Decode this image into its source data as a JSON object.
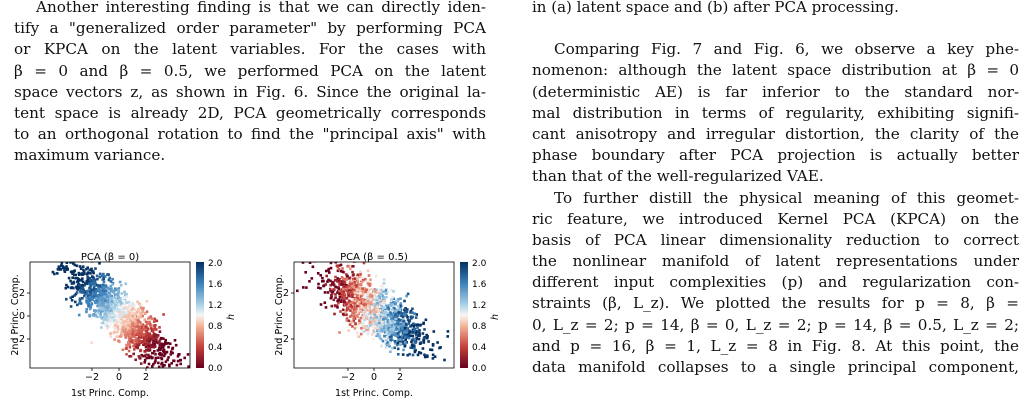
{
  "left_column": {
    "lines": [
      "Another interesting finding is that we can directly iden-",
      "tify a \"generalized order parameter\" by performing PCA",
      "or KPCA on the latent variables.  For the cases with",
      "β = 0 and β = 0.5, we performed PCA on the latent",
      "space vectors z, as shown in Fig. 6. Since the original la-",
      "tent space is already 2D, PCA geometrically corresponds",
      "to an orthogonal rotation to find the \"principal axis\" with",
      "maximum variance."
    ]
  },
  "figure": {
    "panels": [
      {
        "title": "PCA (β = 0)",
        "xlabel": "1st Princ. Comp.",
        "ylabel": "2nd Princ. Comp."
      },
      {
        "title": "PCA (β = 0.5)",
        "xlabel": "1st Princ. Comp.",
        "ylabel": "2nd Princ. Comp."
      }
    ],
    "x_ticks": [
      "−2",
      "0",
      "2"
    ],
    "y_ticks": [
      "2",
      "0",
      "−2"
    ],
    "colorbar_ticks": [
      "2.0",
      "1.6",
      "1.2",
      "0.8",
      "0.4",
      "0.0"
    ],
    "colorbar_label": "h",
    "colors": {
      "high": "#1f4f91",
      "mid": "#f2f2f2",
      "low": "#a3161f"
    }
  },
  "right_column": {
    "caption_tail": "in (a) latent space and (b) after PCA processing.",
    "para1": [
      "Comparing Fig. 7 and Fig. 6, we observe a key phe-",
      "nomenon: although the latent space distribution at β = 0",
      "(deterministic AE) is far inferior to the standard nor-",
      "mal distribution in terms of regularity, exhibiting signifi-",
      "cant anisotropy and irregular distortion, the clarity of the",
      "phase boundary after PCA projection is actually better",
      "than that of the well-regularized VAE."
    ],
    "para2": [
      "To further distill the physical meaning of this geomet-",
      "ric feature, we introduced Kernel PCA (KPCA) on the",
      "basis of PCA linear dimensionality reduction to correct",
      "the nonlinear manifold of latent representations under",
      "different input complexities (p) and regularization con-",
      "straints (β, L_z).  We plotted the results for p = 8, β =",
      "0, L_z = 2; p = 14, β = 0, L_z = 2; p = 14, β = 0.5, L_z = 2;",
      "and p = 16, β = 1, L_z = 8 in Fig. 8.  At this point, the",
      "data manifold collapses to a single principal component,"
    ]
  }
}
